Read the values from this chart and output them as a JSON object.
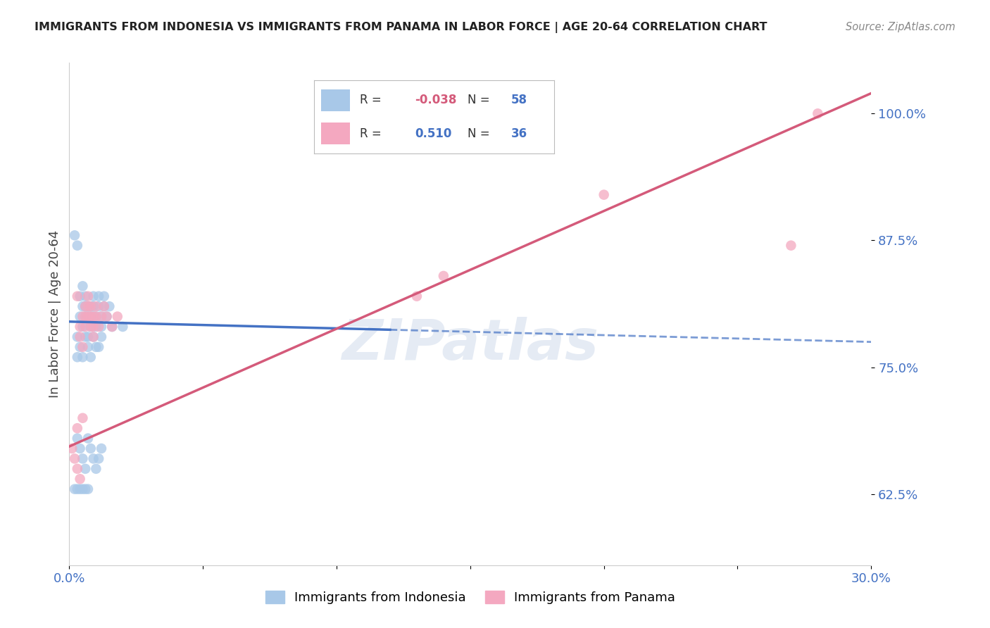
{
  "title": "IMMIGRANTS FROM INDONESIA VS IMMIGRANTS FROM PANAMA IN LABOR FORCE | AGE 20-64 CORRELATION CHART",
  "source": "Source: ZipAtlas.com",
  "ylabel": "In Labor Force | Age 20-64",
  "xlim": [
    0.0,
    0.3
  ],
  "ylim": [
    0.555,
    1.05
  ],
  "xticks": [
    0.0,
    0.05,
    0.1,
    0.15,
    0.2,
    0.25,
    0.3
  ],
  "xticklabels": [
    "0.0%",
    "",
    "",
    "",
    "",
    "",
    "30.0%"
  ],
  "ytick_positions": [
    0.625,
    0.75,
    0.875,
    1.0
  ],
  "ytick_labels": [
    "62.5%",
    "75.0%",
    "87.5%",
    "100.0%"
  ],
  "indonesia_color": "#a8c8e8",
  "panama_color": "#f4a8c0",
  "indonesia_line_color": "#4472c4",
  "panama_line_color": "#d45a7a",
  "indonesia_R": -0.038,
  "indonesia_N": 58,
  "panama_R": 0.51,
  "panama_N": 36,
  "watermark": "ZIPatlas",
  "background_color": "#ffffff",
  "grid_color": "#cccccc",
  "indo_x": [
    0.002,
    0.003,
    0.003,
    0.004,
    0.004,
    0.005,
    0.005,
    0.005,
    0.006,
    0.006,
    0.006,
    0.007,
    0.007,
    0.007,
    0.008,
    0.008,
    0.008,
    0.009,
    0.009,
    0.009,
    0.01,
    0.01,
    0.011,
    0.011,
    0.012,
    0.012,
    0.013,
    0.013,
    0.014,
    0.015,
    0.003,
    0.004,
    0.005,
    0.006,
    0.007,
    0.008,
    0.009,
    0.01,
    0.011,
    0.012,
    0.003,
    0.004,
    0.005,
    0.006,
    0.007,
    0.008,
    0.009,
    0.01,
    0.011,
    0.012,
    0.002,
    0.003,
    0.004,
    0.005,
    0.006,
    0.007,
    0.016,
    0.02
  ],
  "indo_y": [
    0.88,
    0.87,
    0.78,
    0.8,
    0.82,
    0.81,
    0.83,
    0.79,
    0.8,
    0.81,
    0.82,
    0.78,
    0.8,
    0.81,
    0.79,
    0.8,
    0.81,
    0.8,
    0.81,
    0.82,
    0.79,
    0.8,
    0.81,
    0.82,
    0.8,
    0.79,
    0.81,
    0.82,
    0.8,
    0.81,
    0.76,
    0.77,
    0.76,
    0.78,
    0.77,
    0.76,
    0.78,
    0.77,
    0.77,
    0.78,
    0.68,
    0.67,
    0.66,
    0.65,
    0.68,
    0.67,
    0.66,
    0.65,
    0.66,
    0.67,
    0.63,
    0.63,
    0.63,
    0.63,
    0.63,
    0.63,
    0.79,
    0.79
  ],
  "pan_x": [
    0.001,
    0.002,
    0.003,
    0.004,
    0.004,
    0.005,
    0.006,
    0.006,
    0.007,
    0.007,
    0.008,
    0.008,
    0.009,
    0.009,
    0.01,
    0.01,
    0.011,
    0.012,
    0.013,
    0.014,
    0.003,
    0.004,
    0.005,
    0.006,
    0.007,
    0.008,
    0.009,
    0.016,
    0.018,
    0.13,
    0.14,
    0.2,
    0.27,
    0.28,
    0.003,
    0.005
  ],
  "pan_y": [
    0.67,
    0.66,
    0.65,
    0.64,
    0.78,
    0.77,
    0.79,
    0.8,
    0.8,
    0.81,
    0.79,
    0.8,
    0.78,
    0.79,
    0.8,
    0.81,
    0.79,
    0.8,
    0.81,
    0.8,
    0.82,
    0.79,
    0.8,
    0.81,
    0.82,
    0.81,
    0.8,
    0.79,
    0.8,
    0.82,
    0.84,
    0.92,
    0.87,
    1.0,
    0.69,
    0.7
  ]
}
